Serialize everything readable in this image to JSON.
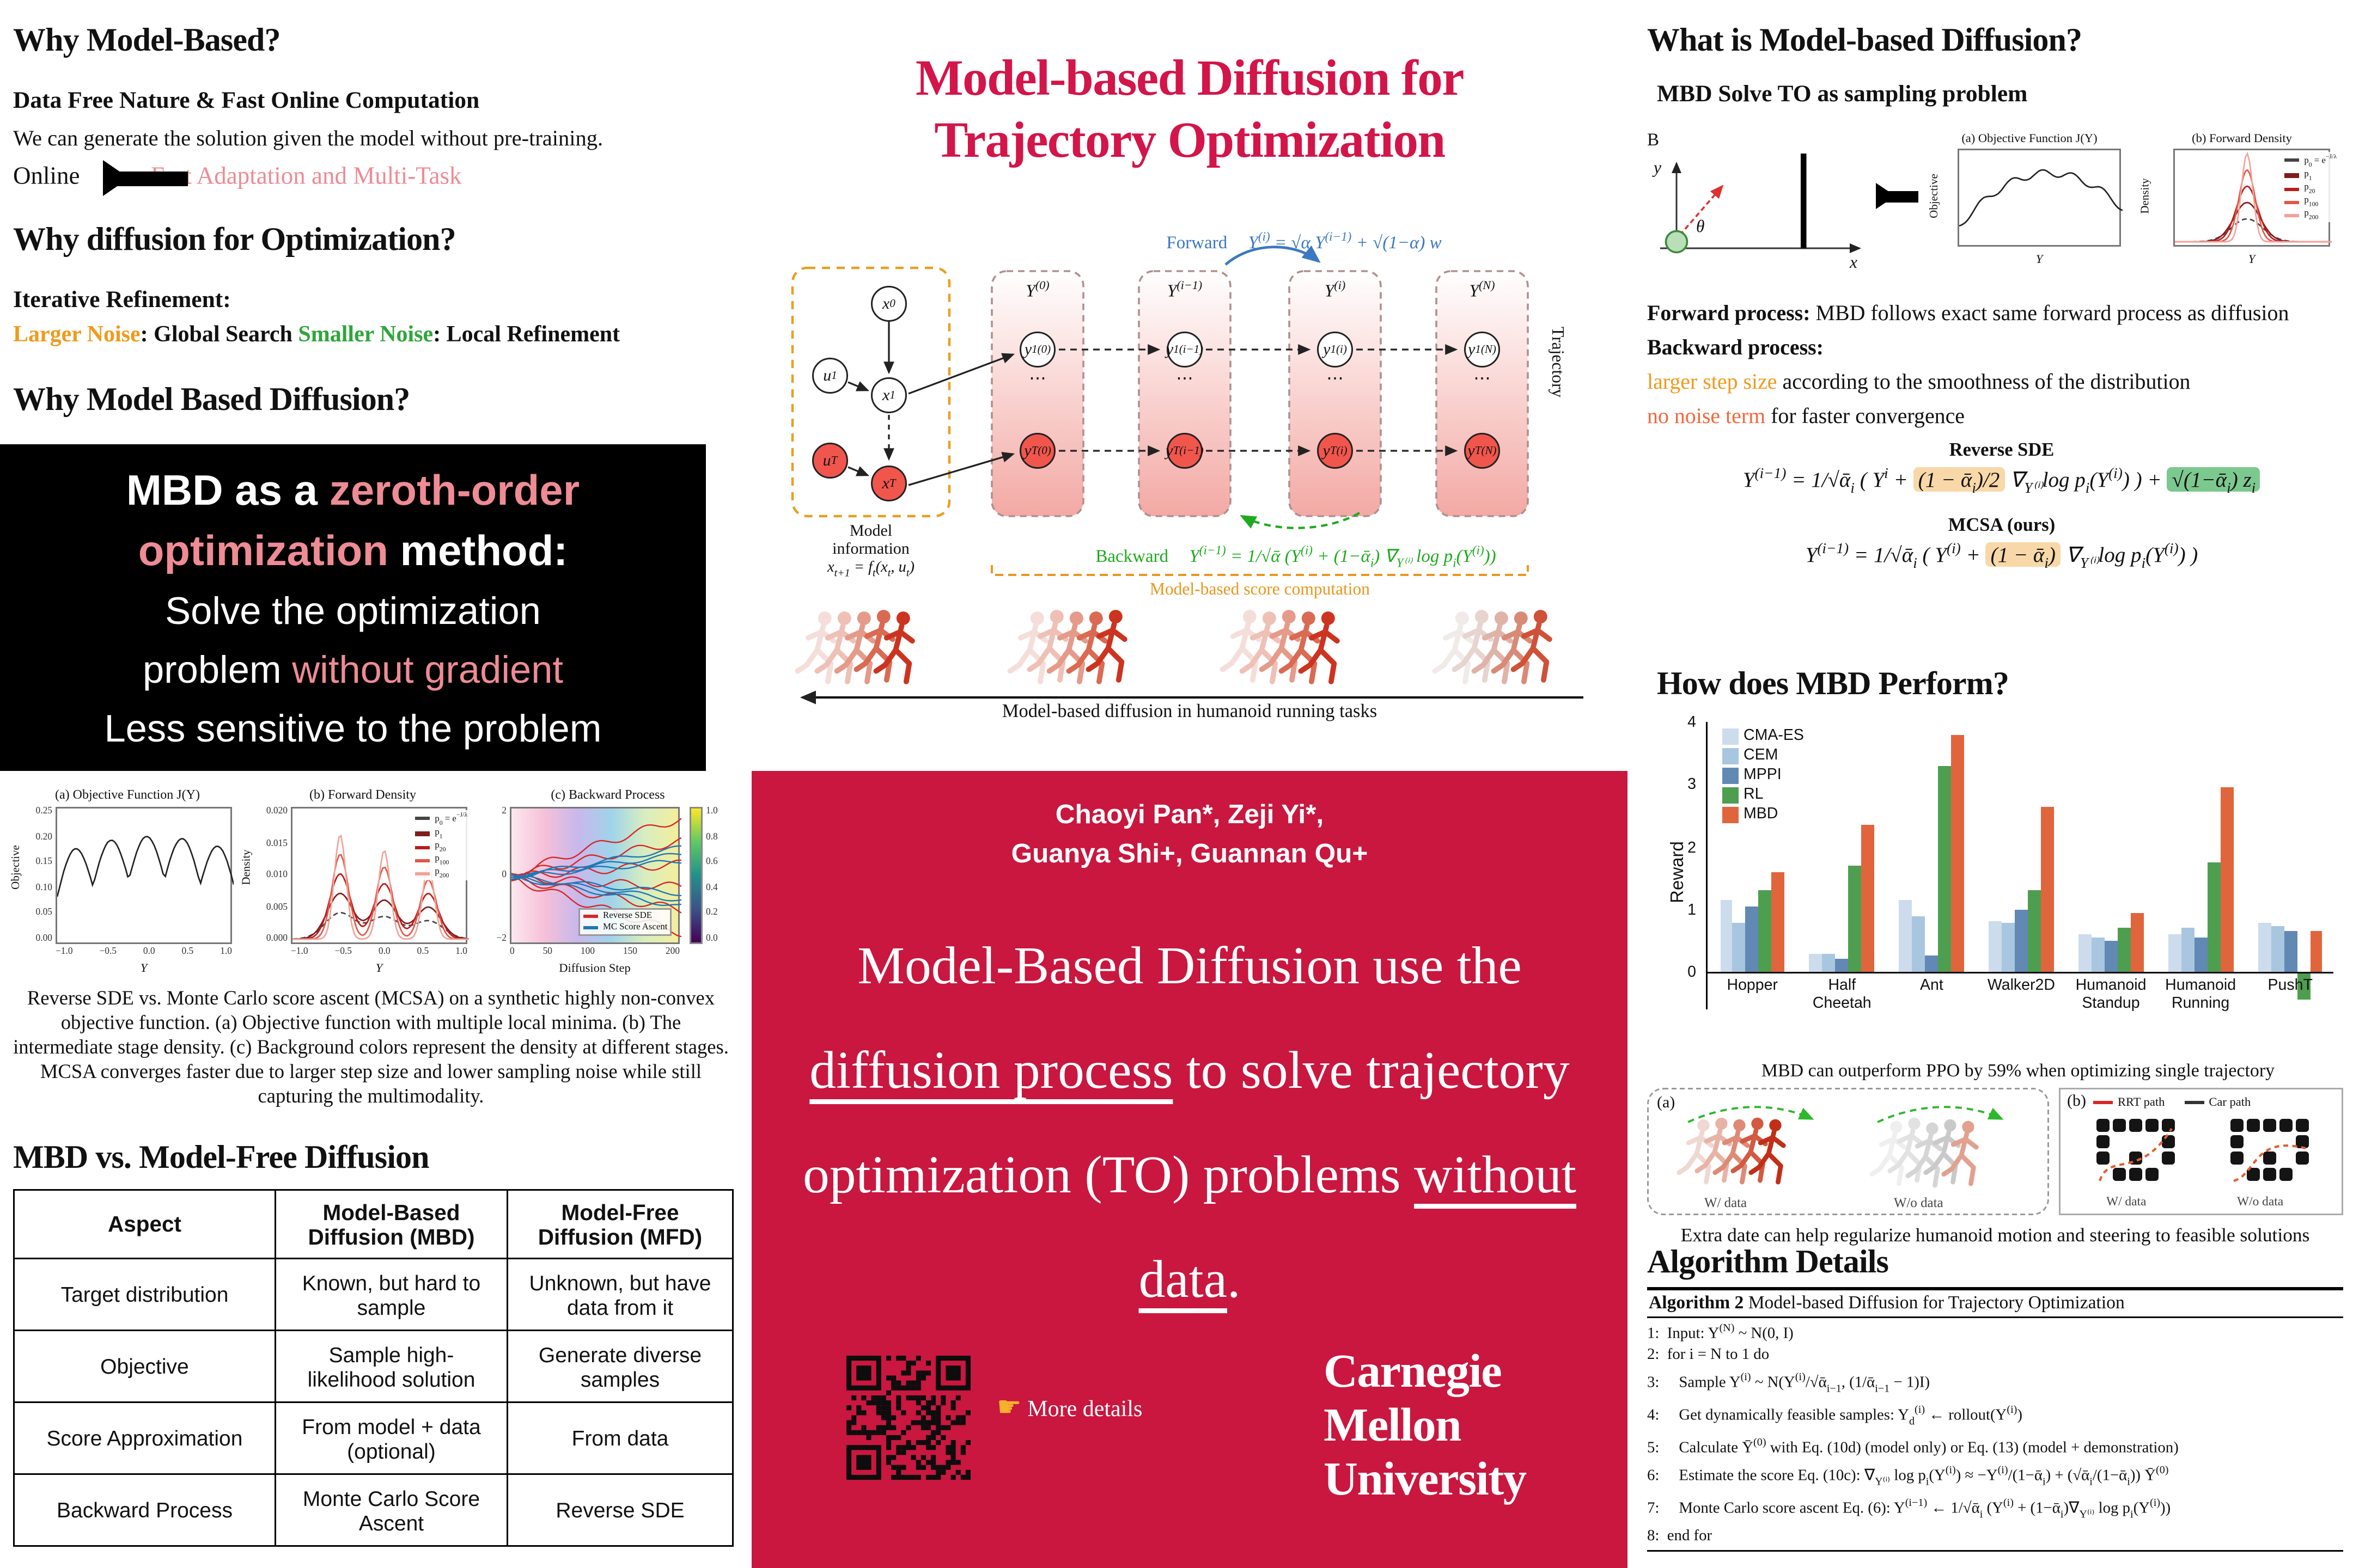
{
  "colors": {
    "crimson_box": "#c9173f",
    "title_red": "#d31549",
    "pink": "#ee8b94",
    "orange": "#f09a1c",
    "green": "#2fa63c",
    "forward_blue": "#3b78c2",
    "backward_green": "#1faa1f",
    "score_orange": "#e8971e",
    "no_noise": "#f4683c"
  },
  "poster": {
    "left": {
      "sec1": {
        "title": "Why Model-Based?",
        "subtitle": "Data Free Nature & Fast Online Computation",
        "body": "We can generate the solution given the model without pre-training.",
        "online_label": "Online",
        "online_pink": "Fast Adaptation and Multi-Task"
      },
      "sec2": {
        "title": "Why diffusion for Optimization?",
        "subtitle": "Iterative Refinement:",
        "larger_noise": "Larger Noise",
        "global_search": ": Global Search ",
        "smaller_noise": "Smaller Noise",
        "local_refinement": ": Local Refinement"
      },
      "sec3": {
        "title": "Why Model Based Diffusion?",
        "box_l1a": "MBD as a ",
        "box_l1b": "zeroth-order",
        "box_l2a": "optimization",
        "box_l2b": " method:",
        "box_l3": "Solve the optimization",
        "box_l4a": "problem ",
        "box_l4b": "without gradient",
        "box_l5": "Less sensitive to the problem"
      },
      "figure": {
        "a_title": "(a) Objective Function J(Y)",
        "a_ylabel": "Objective",
        "b_title": "(b) Forward Density",
        "b_ylabel": "Density",
        "c_title": "(c) Backward Process",
        "x_label": "Y",
        "c_xlabel": "Diffusion Step",
        "a_yticks": [
          "0.25",
          "0.20",
          "0.15",
          "0.10",
          "0.05",
          "0.00"
        ],
        "b_yticks": [
          "0.020",
          "0.015",
          "0.010",
          "0.005",
          "0.000"
        ],
        "ab_xticks": [
          "−1.0",
          "−0.5",
          "0.0",
          "0.5",
          "1.0"
        ],
        "c_xticks": [
          "0",
          "50",
          "100",
          "150",
          "200"
        ],
        "c_yticks": [
          "2",
          "0",
          "−2"
        ],
        "cbar_ticks": [
          "1.0",
          "0.8",
          "0.6",
          "0.4",
          "0.2",
          "0.0"
        ],
        "b_legend": [
          {
            "t": "p_{0} = e^{−J/λ}",
            "c": "#444",
            "d": true
          },
          {
            "t": "p_{1}",
            "c": "#7f1d1d"
          },
          {
            "t": "p_{20}",
            "c": "#b91c1c"
          },
          {
            "t": "p_{100}",
            "c": "#e05848"
          },
          {
            "t": "p_{200}",
            "c": "#f3a29a"
          }
        ],
        "c_legend": [
          {
            "t": "Reverse SDE",
            "c": "#d62728"
          },
          {
            "t": "MC Score Ascent",
            "c": "#1f77b4"
          }
        ]
      },
      "caption": "Reverse SDE vs. Monte Carlo score ascent (MCSA) on a synthetic highly non-convex objective function. (a) Objective function with multiple local minima. (b) The intermediate stage density. (c) Background colors represent the density at different stages. MCSA converges faster due to larger step size and lower sampling noise while still capturing the multimodality.",
      "sec4_title": "MBD vs. Model-Free Diffusion",
      "table": {
        "headers": [
          "Aspect",
          "Model-Based Diffusion (MBD)",
          "Model-Free Diffusion (MFD)"
        ],
        "rows": [
          [
            "Target distribution",
            "Known, but hard to sample",
            "Unknown, but have data from it"
          ],
          [
            "Objective",
            "Sample high-likelihood solution",
            "Generate diverse samples"
          ],
          [
            "Score Approximation",
            "From model + data (optional)",
            "From data"
          ],
          [
            "Backward Process",
            "Monte Carlo Score Ascent",
            "Reverse SDE"
          ]
        ]
      }
    },
    "middle": {
      "title1": "Model-based Diffusion for",
      "title2": "Trajectory Optimization",
      "diagram": {
        "forward_label": "Forward",
        "forward_formula": "Y^{(i)} = √α Y^{(i−1)} + √(1−α) w",
        "backward_label": "Backward",
        "backward_formula": "Y^{(i−1)} = 1/√ᾱ (Y^{(i)} + (1−ᾱ_{i}) ∇_{Y⁽ⁱ⁾} log p_{i}(Y^{(i)}))",
        "model1": "Model",
        "model2": "information",
        "model_formula": "x_{t+1} = f_{t}(x_{t}, u_{t})",
        "score_label": "Model-based score computation",
        "trajectory": "Trajectory",
        "dots": "⋯",
        "nodes": {
          "x0": "x_{0}",
          "u1": "u_{1}",
          "x1": "x_{1}",
          "uT": "u_{T}",
          "xT": "x_{T}"
        },
        "cols": [
          {
            "head": "Y^{(0)}",
            "y1": "y_{1}^{(0)}",
            "yT": "y_{T}^{(0)}"
          },
          {
            "head": "Y^{(i−1)}",
            "y1": "y_{1}^{(i−1)}",
            "yT": "y_{T}^{(i−1)}"
          },
          {
            "head": "Y^{(i)}",
            "y1": "y_{1}^{(i)}",
            "yT": "y_{T}^{(i)}"
          },
          {
            "head": "Y^{(N)}",
            "y1": "y_{1}^{(N)}",
            "yT": "y_{T}^{(N)}"
          }
        ]
      },
      "humanoid_caption": "Model-based diffusion in humanoid running tasks",
      "red_box": {
        "authors1": "Chaoyi Pan*, Zeji Yi*,",
        "authors2": "Guanya Shi+, Guannan Qu+",
        "st1": "Model-Based Diffusion use the ",
        "st2": "diffusion process",
        "st3": " to solve trajectory optimization (TO) problems ",
        "st4": "without data",
        "st5": ".",
        "pointer": "☛",
        "more_details": "More details",
        "cmu1": "Carnegie",
        "cmu2": "Mellon",
        "cmu3": "University"
      }
    },
    "right": {
      "sec1_title": "What is Model-based Diffusion?",
      "sec1_sub": "MBD Solve TO as sampling problem",
      "cartpole": {
        "b": "B",
        "x": "x",
        "y": "y",
        "theta": "θ"
      },
      "mini_a": {
        "title": "(a) Objective Function J(Y)",
        "ylabel": "Objective",
        "xlabel": "Y"
      },
      "mini_b": {
        "title": "(b) Forward Density",
        "ylabel": "Density",
        "xlabel": "Y",
        "legend": [
          {
            "t": "p_{0} = e^{−J/λ}",
            "c": "#444",
            "d": true
          },
          {
            "t": "p_{1}",
            "c": "#7f1d1d"
          },
          {
            "t": "p_{20}",
            "c": "#b91c1c"
          },
          {
            "t": "p_{100}",
            "c": "#e05848"
          },
          {
            "t": "p_{200}",
            "c": "#f3a29a"
          }
        ]
      },
      "forward_bold": "Forward process:",
      "forward_text": " MBD follows exact same forward process as diffusion",
      "backward_bold": "Backward process:",
      "step_orange": "larger step size",
      "step_text": " according to the smoothness of the distribution",
      "noise_orange": "no noise term",
      "noise_text": " for faster convergence",
      "rsde_label": "Reverse SDE",
      "rsde_pre": "Y^{(i−1)} = 1/√ᾱ_{i} ( Y^{i} + ",
      "rsde_hl1": "(1 − ᾱ_{i})/2",
      "rsde_mid": " ∇_{Y⁽ⁱ⁾}log p_{i}(Y^{(i)}) ) + ",
      "rsde_hl2": "√(1−ᾱ_{i}) z_{i}",
      "mcsa_label": "MCSA (ours)",
      "mcsa_pre": "Y^{(i−1)} = 1/√ᾱ_{i} ( Y^{(i)} + ",
      "mcsa_hl": "(1 − ᾱ_{i})",
      "mcsa_post": " ∇_{Y⁽ⁱ⁾}log p_{i}(Y^{(i)}) )",
      "sec2_title": "How does MBD Perform?",
      "chart_caption": "MBD can outperform PPO by 59% when optimizing single trajectory",
      "figa": {
        "label": "(a)",
        "w": "W/ data",
        "wo": "W/o data"
      },
      "figb": {
        "label": "(b)",
        "legend1": "RRT path",
        "legend2": "Car path",
        "w": "W/ data",
        "wo": "W/o data"
      },
      "fig_caption": "Extra date can help regularize humanoid motion and steering to feasible solutions",
      "sec3_title": "Algorithm Details",
      "algo": {
        "title_bold": "Algorithm 2",
        "title_rest": " Model-based Diffusion for Trajectory Optimization",
        "lines": [
          "1:  Input: Y^{(N)} ~ N(0, I)",
          "2:  for i = N to 1 do",
          "3:     Sample Y^{(i)} ~ N(Y^{(i)}/√ᾱ_{i−1}, (1/ᾱ_{i−1} − 1)I)",
          "4:     Get dynamically feasible samples: Y_{d}^{(i)} ← rollout(Y^{(i)})",
          "5:     Calculate Ȳ^{(0)} with Eq. (10d) (model only) or Eq. (13) (model + demonstration)",
          "6:     Estimate the score Eq. (10c): ∇_{Y⁽ⁱ⁾} log p_{i}(Y^{(i)}) ≈ −Y^{(i)}/(1−ᾱ_{i}) + (√ᾱ_{i}/(1−ᾱ_{i})) Ȳ^{(0)}",
          "7:     Monte Carlo score ascent Eq. (6): Y^{(i−1)} ← 1/√ᾱ_{i} (Y^{(i)} + (1−ᾱ_{i})∇_{Y⁽ⁱ⁾} log p_{i}(Y^{(i)}))",
          "8:  end for"
        ]
      }
    }
  },
  "chart_data": {
    "type": "bar",
    "title": "",
    "ylabel": "Reward",
    "ylim": [
      -0.6,
      4.0
    ],
    "yticks": [
      0,
      1,
      2,
      3,
      4
    ],
    "grid": false,
    "legend_position": "upper left",
    "categories": [
      "Hopper",
      "Half Cheetah",
      "Ant",
      "Walker2D",
      "Humanoid Standup",
      "Humanoid Running",
      "PushT"
    ],
    "series": [
      {
        "name": "CMA-ES",
        "color": "#cddcec",
        "values": [
          1.15,
          0.3,
          1.15,
          0.8,
          0.6,
          0.6,
          0.78
        ]
      },
      {
        "name": "CEM",
        "color": "#a9c6e0",
        "values": [
          0.78,
          0.28,
          0.9,
          0.78,
          0.55,
          0.7,
          0.72
        ]
      },
      {
        "name": "MPPI",
        "color": "#6189b4",
        "values": [
          1.05,
          0.2,
          0.25,
          1.0,
          0.5,
          0.55,
          0.65
        ]
      },
      {
        "name": "RL",
        "color": "#4e9e50",
        "values": [
          1.3,
          1.7,
          3.3,
          1.3,
          0.7,
          1.75,
          -0.45
        ]
      },
      {
        "name": "MBD",
        "color": "#e0653c",
        "values": [
          1.6,
          2.35,
          3.8,
          2.65,
          0.95,
          2.95,
          0.65
        ]
      }
    ]
  }
}
